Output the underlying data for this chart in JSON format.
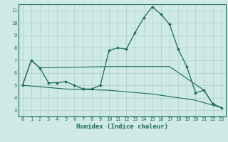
{
  "xlabel": "Humidex (Indice chaleur)",
  "bg_color": "#cfe9e5",
  "grid_color": "#b0d4cc",
  "line_color": "#1a6b5a",
  "xlim": [
    -0.5,
    23.5
  ],
  "ylim": [
    2.5,
    11.5
  ],
  "xticks": [
    0,
    1,
    2,
    3,
    4,
    5,
    6,
    7,
    8,
    9,
    10,
    11,
    12,
    13,
    14,
    15,
    16,
    17,
    18,
    19,
    20,
    21,
    22,
    23
  ],
  "yticks": [
    3,
    4,
    5,
    6,
    7,
    8,
    9,
    10,
    11
  ],
  "line1_x": [
    0,
    1,
    2,
    3,
    4,
    5,
    6,
    7,
    8,
    9,
    10,
    11,
    12,
    13,
    14,
    15,
    16,
    17,
    18,
    19,
    20,
    21,
    22,
    23
  ],
  "line1_y": [
    5.0,
    7.0,
    6.4,
    5.2,
    5.2,
    5.3,
    5.0,
    4.7,
    4.7,
    5.0,
    7.8,
    8.0,
    7.9,
    9.2,
    10.4,
    11.3,
    10.7,
    9.9,
    7.9,
    6.5,
    4.4,
    4.6,
    3.5,
    3.2
  ],
  "line2_x": [
    0,
    1,
    2,
    10,
    17,
    21,
    22,
    23
  ],
  "line2_y": [
    5.0,
    7.0,
    6.4,
    6.5,
    6.5,
    4.6,
    3.5,
    3.2
  ],
  "line3_x": [
    0,
    5,
    10,
    15,
    20,
    23
  ],
  "line3_y": [
    5.0,
    4.7,
    4.6,
    4.3,
    3.8,
    3.2
  ]
}
